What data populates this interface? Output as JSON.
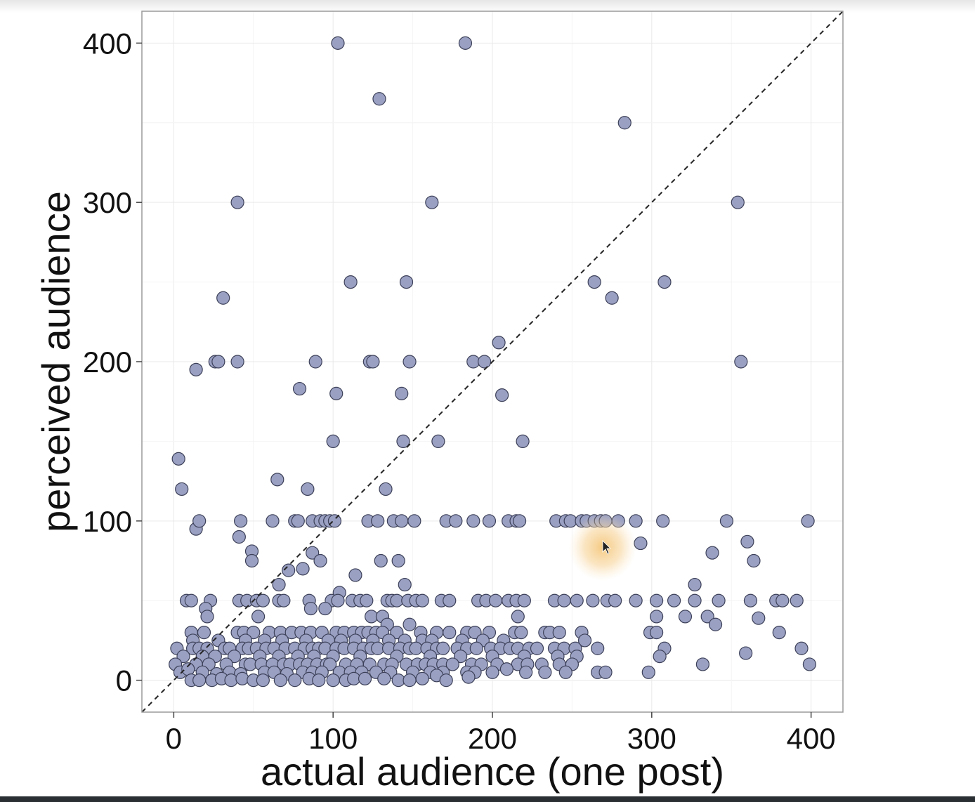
{
  "chart_data": {
    "type": "scatter",
    "title": "",
    "xlabel": "actual audience (one post)",
    "ylabel": "perceived audience",
    "xlim": [
      -20,
      420
    ],
    "ylim": [
      -20,
      420
    ],
    "x_ticks": [
      0,
      100,
      200,
      300,
      400
    ],
    "y_ticks": [
      0,
      100,
      200,
      300,
      400
    ],
    "grid": true,
    "reference_line": "y = x (dashed)",
    "colors": {
      "point_fill": "#9aa0c2",
      "point_stroke": "#3c4058",
      "panel_border": "#9a9a9a",
      "grid": "#ececec",
      "cursor_glow": "#f5c77a"
    },
    "points": [
      [
        103,
        400
      ],
      [
        183,
        400
      ],
      [
        129,
        365
      ],
      [
        283,
        350
      ],
      [
        40,
        300
      ],
      [
        162,
        300
      ],
      [
        354,
        300
      ],
      [
        111,
        250
      ],
      [
        146,
        250
      ],
      [
        264,
        250
      ],
      [
        308,
        250
      ],
      [
        31,
        240
      ],
      [
        275,
        240
      ],
      [
        14,
        195
      ],
      [
        26,
        200
      ],
      [
        28,
        200
      ],
      [
        40,
        200
      ],
      [
        89,
        200
      ],
      [
        123,
        200
      ],
      [
        125,
        200
      ],
      [
        148,
        200
      ],
      [
        188,
        200
      ],
      [
        195,
        200
      ],
      [
        356,
        200
      ],
      [
        204,
        212
      ],
      [
        79,
        183
      ],
      [
        102,
        180
      ],
      [
        143,
        180
      ],
      [
        206,
        179
      ],
      [
        100,
        150
      ],
      [
        144,
        150
      ],
      [
        166,
        150
      ],
      [
        219,
        150
      ],
      [
        3,
        139
      ],
      [
        5,
        120
      ],
      [
        65,
        126
      ],
      [
        84,
        120
      ],
      [
        133,
        120
      ],
      [
        14,
        95
      ],
      [
        16,
        100
      ],
      [
        41,
        90
      ],
      [
        42,
        100
      ],
      [
        62,
        100
      ],
      [
        76,
        100
      ],
      [
        78,
        100
      ],
      [
        87,
        100
      ],
      [
        92,
        100
      ],
      [
        95,
        100
      ],
      [
        98,
        100
      ],
      [
        101,
        100
      ],
      [
        122,
        100
      ],
      [
        128,
        100
      ],
      [
        138,
        100
      ],
      [
        143,
        100
      ],
      [
        151,
        100
      ],
      [
        171,
        100
      ],
      [
        177,
        100
      ],
      [
        188,
        100
      ],
      [
        198,
        100
      ],
      [
        210,
        100
      ],
      [
        215,
        100
      ],
      [
        217,
        100
      ],
      [
        240,
        100
      ],
      [
        246,
        100
      ],
      [
        249,
        100
      ],
      [
        256,
        100
      ],
      [
        259,
        100
      ],
      [
        264,
        100
      ],
      [
        268,
        100
      ],
      [
        271,
        100
      ],
      [
        279,
        100
      ],
      [
        290,
        100
      ],
      [
        307,
        100
      ],
      [
        347,
        100
      ],
      [
        398,
        100
      ],
      [
        293,
        86
      ],
      [
        360,
        87
      ],
      [
        338,
        80
      ],
      [
        364,
        75
      ],
      [
        49,
        81
      ],
      [
        49,
        75
      ],
      [
        87,
        80
      ],
      [
        92,
        75
      ],
      [
        130,
        75
      ],
      [
        141,
        75
      ],
      [
        72,
        69
      ],
      [
        81,
        70
      ],
      [
        114,
        66
      ],
      [
        145,
        60
      ],
      [
        66,
        60
      ],
      [
        327,
        60
      ],
      [
        104,
        55
      ],
      [
        8,
        50
      ],
      [
        11,
        50
      ],
      [
        23,
        50
      ],
      [
        41,
        50
      ],
      [
        46,
        50
      ],
      [
        52,
        50
      ],
      [
        56,
        50
      ],
      [
        66,
        50
      ],
      [
        69,
        50
      ],
      [
        85,
        50
      ],
      [
        99,
        50
      ],
      [
        103,
        50
      ],
      [
        112,
        50
      ],
      [
        117,
        50
      ],
      [
        121,
        50
      ],
      [
        134,
        50
      ],
      [
        137,
        50
      ],
      [
        140,
        50
      ],
      [
        147,
        50
      ],
      [
        152,
        50
      ],
      [
        156,
        50
      ],
      [
        168,
        50
      ],
      [
        173,
        50
      ],
      [
        191,
        50
      ],
      [
        196,
        50
      ],
      [
        202,
        50
      ],
      [
        210,
        50
      ],
      [
        215,
        50
      ],
      [
        220,
        50
      ],
      [
        239,
        50
      ],
      [
        245,
        50
      ],
      [
        253,
        50
      ],
      [
        263,
        50
      ],
      [
        272,
        50
      ],
      [
        277,
        50
      ],
      [
        290,
        50
      ],
      [
        303,
        50
      ],
      [
        314,
        50
      ],
      [
        327,
        50
      ],
      [
        342,
        50
      ],
      [
        362,
        50
      ],
      [
        378,
        50
      ],
      [
        382,
        50
      ],
      [
        391,
        50
      ],
      [
        20,
        45
      ],
      [
        86,
        45
      ],
      [
        95,
        45
      ],
      [
        21,
        40
      ],
      [
        124,
        40
      ],
      [
        131,
        40
      ],
      [
        53,
        40
      ],
      [
        216,
        40
      ],
      [
        303,
        40
      ],
      [
        321,
        40
      ],
      [
        335,
        40
      ],
      [
        367,
        39
      ],
      [
        134,
        35
      ],
      [
        148,
        35
      ],
      [
        340,
        35
      ],
      [
        11,
        30
      ],
      [
        19,
        30
      ],
      [
        40,
        30
      ],
      [
        44,
        30
      ],
      [
        50,
        30
      ],
      [
        60,
        30
      ],
      [
        67,
        30
      ],
      [
        74,
        30
      ],
      [
        80,
        30
      ],
      [
        86,
        30
      ],
      [
        93,
        30
      ],
      [
        102,
        30
      ],
      [
        107,
        30
      ],
      [
        113,
        30
      ],
      [
        118,
        30
      ],
      [
        122,
        30
      ],
      [
        127,
        30
      ],
      [
        131,
        30
      ],
      [
        140,
        30
      ],
      [
        155,
        30
      ],
      [
        165,
        30
      ],
      [
        173,
        30
      ],
      [
        184,
        30
      ],
      [
        189,
        30
      ],
      [
        198,
        30
      ],
      [
        214,
        30
      ],
      [
        218,
        30
      ],
      [
        233,
        30
      ],
      [
        236,
        30
      ],
      [
        242,
        30
      ],
      [
        256,
        30
      ],
      [
        299,
        30
      ],
      [
        303,
        30
      ],
      [
        380,
        30
      ],
      [
        12,
        25
      ],
      [
        28,
        25
      ],
      [
        45,
        25
      ],
      [
        57,
        25
      ],
      [
        68,
        25
      ],
      [
        83,
        25
      ],
      [
        97,
        25
      ],
      [
        105,
        25
      ],
      [
        114,
        25
      ],
      [
        125,
        25
      ],
      [
        135,
        25
      ],
      [
        145,
        25
      ],
      [
        156,
        25
      ],
      [
        162,
        25
      ],
      [
        181,
        25
      ],
      [
        194,
        25
      ],
      [
        207,
        25
      ],
      [
        258,
        25
      ],
      [
        2,
        20
      ],
      [
        12,
        20
      ],
      [
        16,
        20
      ],
      [
        21,
        20
      ],
      [
        32,
        20
      ],
      [
        35,
        20
      ],
      [
        43,
        20
      ],
      [
        47,
        20
      ],
      [
        52,
        20
      ],
      [
        58,
        20
      ],
      [
        63,
        20
      ],
      [
        70,
        20
      ],
      [
        76,
        20
      ],
      [
        82,
        20
      ],
      [
        87,
        20
      ],
      [
        91,
        20
      ],
      [
        95,
        20
      ],
      [
        102,
        20
      ],
      [
        107,
        20
      ],
      [
        113,
        20
      ],
      [
        119,
        20
      ],
      [
        124,
        20
      ],
      [
        128,
        20
      ],
      [
        135,
        20
      ],
      [
        142,
        20
      ],
      [
        148,
        20
      ],
      [
        152,
        20
      ],
      [
        159,
        20
      ],
      [
        165,
        20
      ],
      [
        169,
        20
      ],
      [
        178,
        20
      ],
      [
        184,
        20
      ],
      [
        190,
        20
      ],
      [
        199,
        20
      ],
      [
        205,
        20
      ],
      [
        211,
        20
      ],
      [
        216,
        20
      ],
      [
        223,
        20
      ],
      [
        228,
        20
      ],
      [
        239,
        20
      ],
      [
        245,
        20
      ],
      [
        252,
        20
      ],
      [
        266,
        20
      ],
      [
        308,
        20
      ],
      [
        394,
        20
      ],
      [
        6,
        15
      ],
      [
        18,
        15
      ],
      [
        26,
        15
      ],
      [
        38,
        15
      ],
      [
        54,
        15
      ],
      [
        66,
        15
      ],
      [
        78,
        15
      ],
      [
        88,
        15
      ],
      [
        100,
        15
      ],
      [
        117,
        15
      ],
      [
        140,
        15
      ],
      [
        161,
        15
      ],
      [
        180,
        15
      ],
      [
        200,
        15
      ],
      [
        220,
        15
      ],
      [
        241,
        15
      ],
      [
        253,
        15
      ],
      [
        305,
        15
      ],
      [
        359,
        17
      ],
      [
        1,
        10
      ],
      [
        14,
        10
      ],
      [
        22,
        10
      ],
      [
        33,
        10
      ],
      [
        45,
        10
      ],
      [
        48,
        10
      ],
      [
        55,
        10
      ],
      [
        62,
        10
      ],
      [
        69,
        10
      ],
      [
        73,
        10
      ],
      [
        79,
        10
      ],
      [
        84,
        10
      ],
      [
        90,
        10
      ],
      [
        96,
        10
      ],
      [
        98,
        10
      ],
      [
        108,
        10
      ],
      [
        115,
        10
      ],
      [
        123,
        10
      ],
      [
        132,
        10
      ],
      [
        137,
        10
      ],
      [
        146,
        10
      ],
      [
        153,
        10
      ],
      [
        158,
        10
      ],
      [
        163,
        10
      ],
      [
        169,
        10
      ],
      [
        175,
        10
      ],
      [
        187,
        10
      ],
      [
        193,
        10
      ],
      [
        203,
        10
      ],
      [
        216,
        10
      ],
      [
        222,
        10
      ],
      [
        231,
        10
      ],
      [
        242,
        10
      ],
      [
        250,
        10
      ],
      [
        332,
        10
      ],
      [
        399,
        10
      ],
      [
        4,
        5
      ],
      [
        9,
        7
      ],
      [
        18,
        5
      ],
      [
        27,
        4
      ],
      [
        35,
        5
      ],
      [
        42,
        4
      ],
      [
        57,
        5
      ],
      [
        63,
        5
      ],
      [
        71,
        4
      ],
      [
        81,
        5
      ],
      [
        87,
        5
      ],
      [
        93,
        5
      ],
      [
        104,
        5
      ],
      [
        111,
        5
      ],
      [
        118,
        5
      ],
      [
        127,
        5
      ],
      [
        136,
        5
      ],
      [
        150,
        5
      ],
      [
        161,
        5
      ],
      [
        169,
        5
      ],
      [
        184,
        5
      ],
      [
        189,
        5
      ],
      [
        200,
        5
      ],
      [
        209,
        7
      ],
      [
        221,
        5
      ],
      [
        233,
        5
      ],
      [
        246,
        5
      ],
      [
        266,
        5
      ],
      [
        271,
        5
      ],
      [
        298,
        5
      ],
      [
        11,
        0
      ],
      [
        16,
        0
      ],
      [
        24,
        0
      ],
      [
        30,
        1
      ],
      [
        36,
        0
      ],
      [
        43,
        1
      ],
      [
        50,
        0
      ],
      [
        56,
        0
      ],
      [
        67,
        0
      ],
      [
        76,
        0
      ],
      [
        85,
        1
      ],
      [
        91,
        0
      ],
      [
        100,
        0
      ],
      [
        108,
        0
      ],
      [
        113,
        1
      ],
      [
        120,
        1
      ],
      [
        132,
        1
      ],
      [
        141,
        0
      ],
      [
        148,
        0
      ],
      [
        156,
        1
      ],
      [
        165,
        3
      ],
      [
        171,
        0
      ],
      [
        185,
        2
      ]
    ]
  }
}
